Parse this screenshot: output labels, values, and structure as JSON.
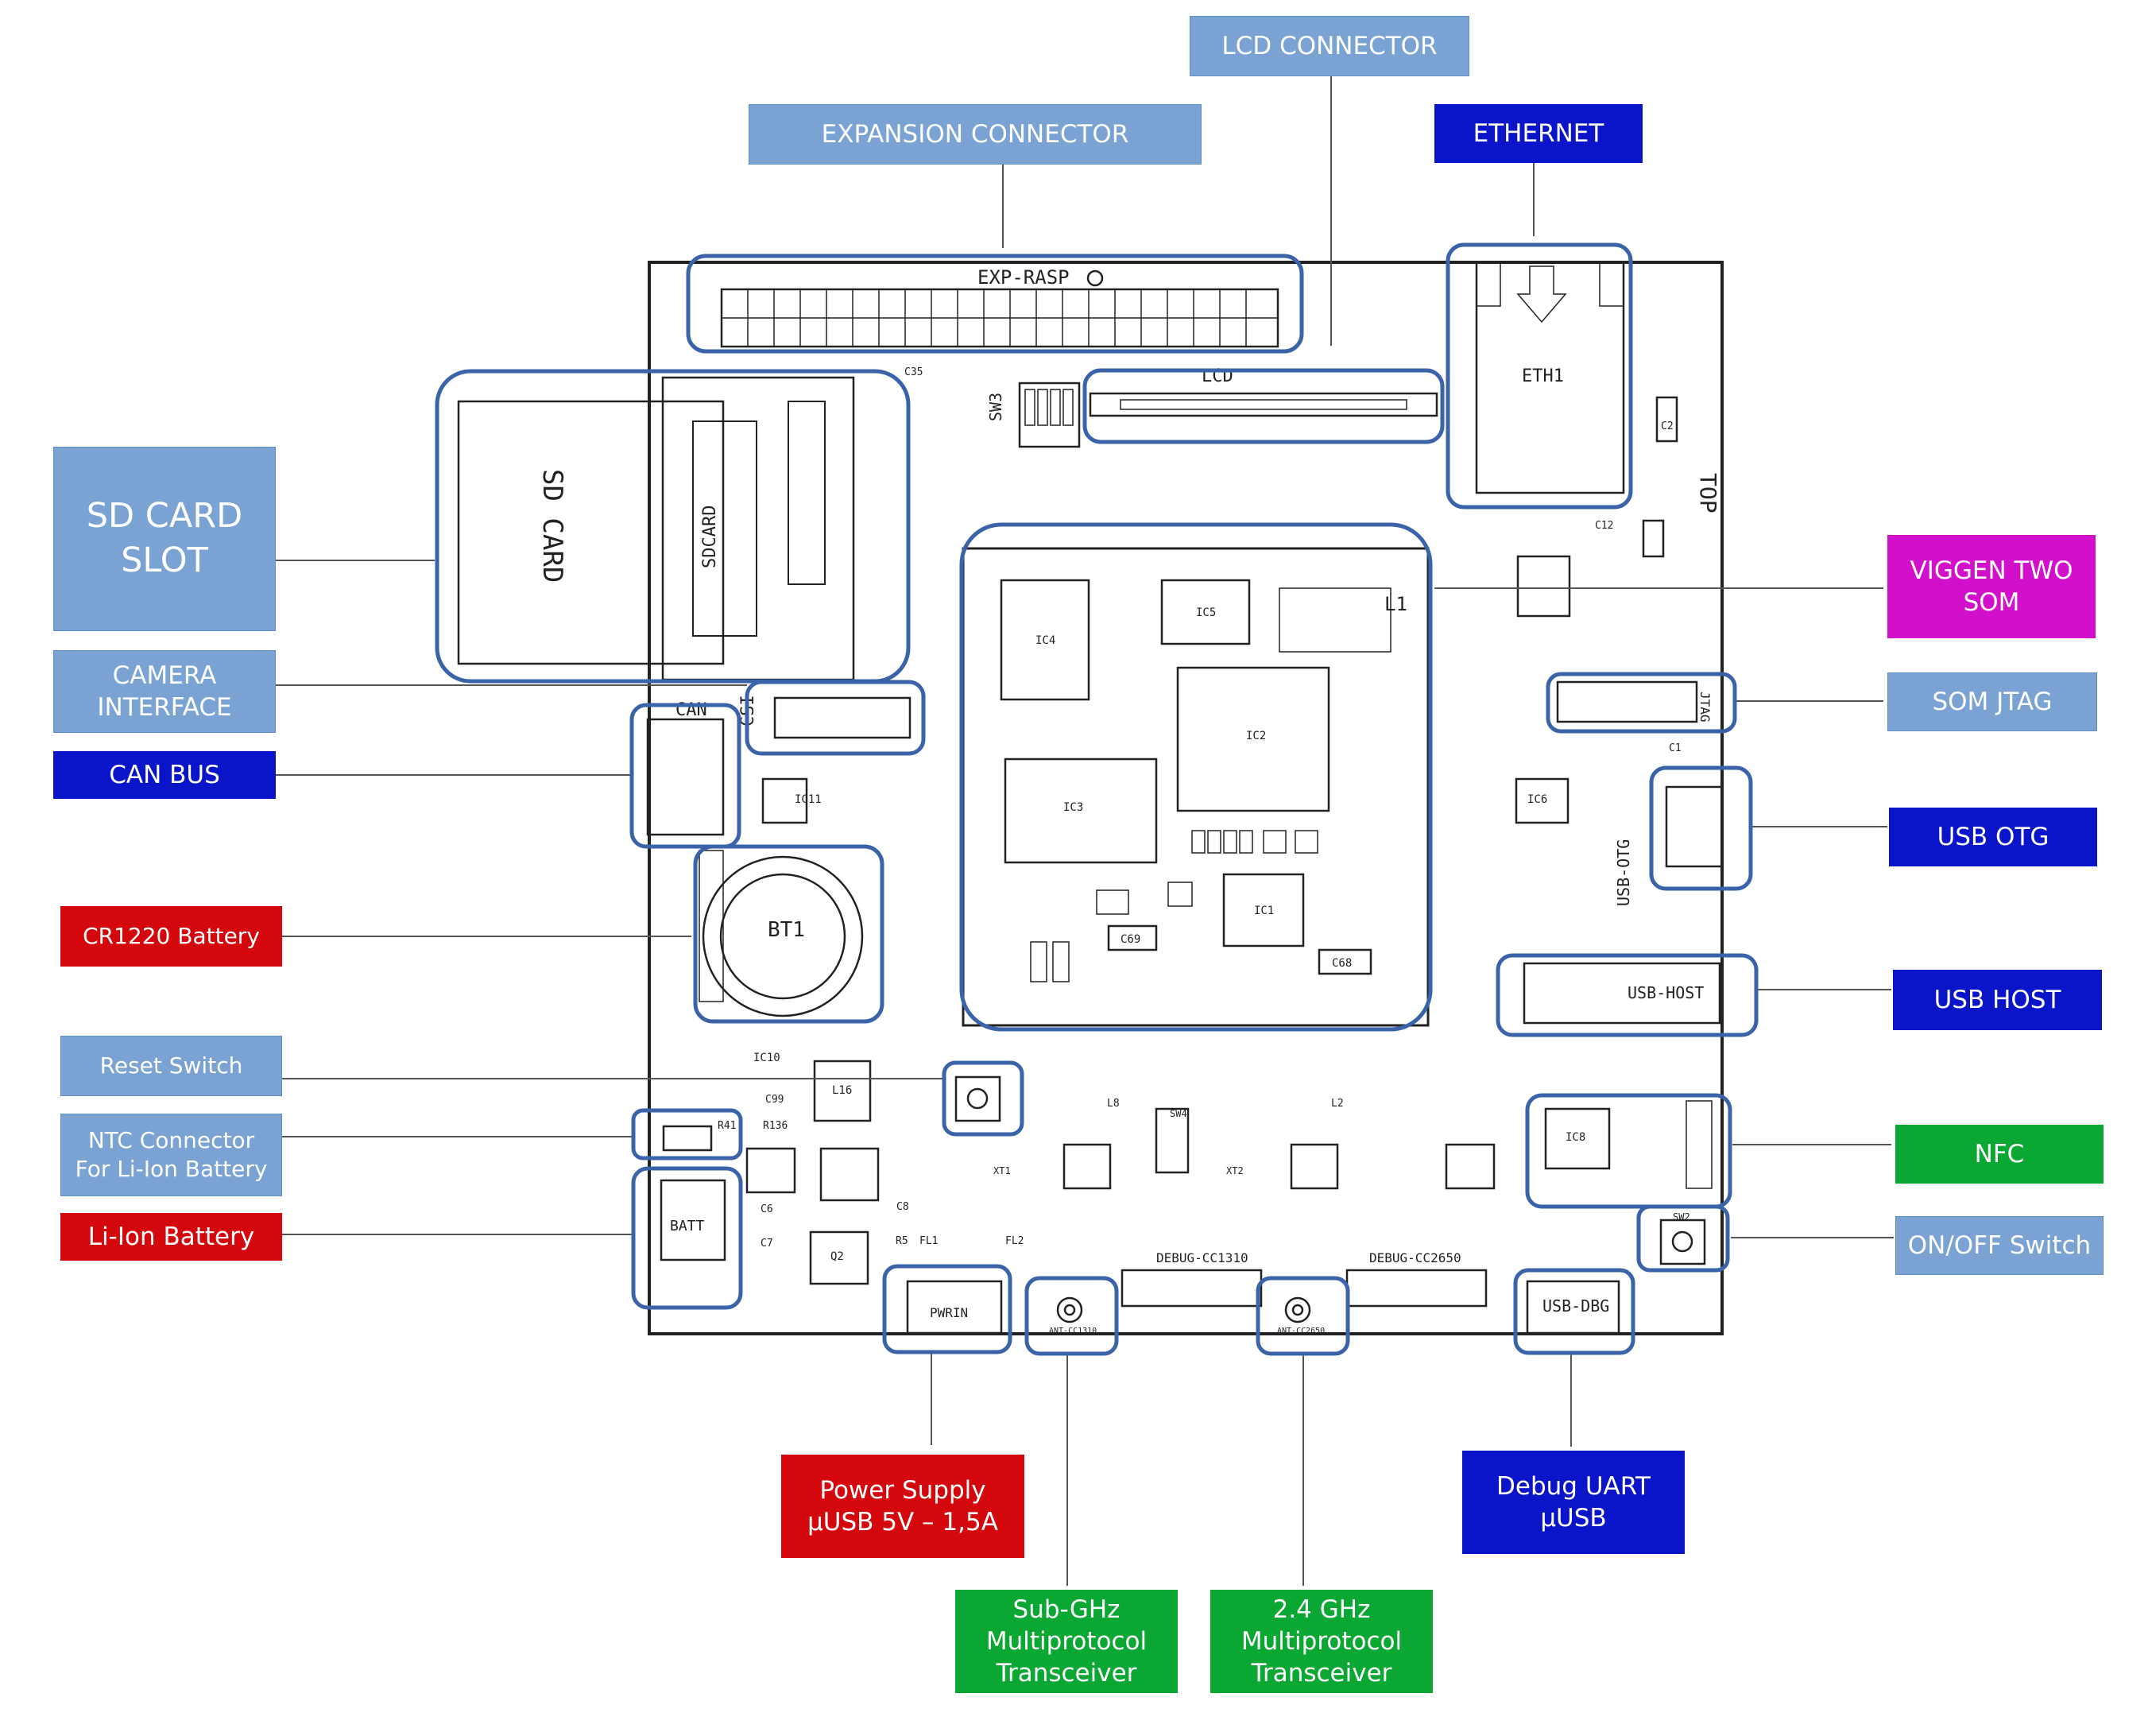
{
  "colors": {
    "light_blue": "#7aa3d4",
    "dark_blue": "#0a14c8",
    "red": "#d4080c",
    "green": "#0aa832",
    "magenta": "#d210cc",
    "highlight_outline": "#3a63a8",
    "pcb_line": "#222222"
  },
  "callouts": {
    "lcd_connector": "LCD CONNECTOR",
    "expansion_connector": "EXPANSION CONNECTOR",
    "ethernet": "ETHERNET",
    "sd_card_slot": "SD CARD\nSLOT",
    "camera_interface": "CAMERA\nINTERFACE",
    "can_bus": "CAN BUS",
    "cr1220_battery": "CR1220 Battery",
    "reset_switch": "Reset Switch",
    "ntc_connector": "NTC Connector\nFor Li-Ion Battery",
    "li_ion_battery": "Li-Ion Battery",
    "viggen_two_som": "VIGGEN TWO\nSOM",
    "som_jtag": "SOM JTAG",
    "usb_otg": "USB OTG",
    "usb_host": "USB HOST",
    "nfc": "NFC",
    "on_off_switch": "ON/OFF Switch",
    "power_supply": "Power Supply\nμUSB 5V – 1,5A",
    "sub_ghz": "Sub-GHz\nMultiprotocol\nTransceiver",
    "ghz_24": "2.4 GHz\nMultiprotocol\nTransceiver",
    "debug_uart": "Debug UART\nμUSB"
  },
  "silkscreen": {
    "exp_rasp": "EXP-RASP",
    "lcd": "LCD",
    "eth1": "ETH1",
    "top": "TOP",
    "sd_card": "SD CARD",
    "sdcard": "SDCARD",
    "can": "CAN",
    "csi": "CSI",
    "bt1": "BT1",
    "batt": "BATT",
    "jtag": "JTAG",
    "usb_otg": "USB-OTG",
    "usb_host": "USB-HOST",
    "usb_dbg": "USB-DBG",
    "pwrin": "PWRIN",
    "debug_cc1310": "DEBUG-CC1310",
    "debug_cc2650": "DEBUG-CC2650",
    "ant_cc1310": "ANT-CC1310",
    "ant_cc2650": "ANT-CC2650",
    "l1": "L1",
    "sw3": "SW3",
    "ic1": "IC1",
    "ic2": "IC2",
    "ic3": "IC3",
    "ic4": "IC4",
    "ic5": "IC5",
    "ic6": "IC6",
    "ic8": "IC8",
    "ic11": "IC11",
    "ic10": "IC10",
    "c68": "C68",
    "c69": "C69",
    "l16": "L16",
    "c99": "C99",
    "r136": "R136",
    "r41": "R41",
    "q2": "Q2",
    "c6": "C6",
    "c7": "C7",
    "c8": "C8",
    "l2": "L2",
    "l8": "L8",
    "sw4": "SW4",
    "sw2": "SW2",
    "c35": "C35",
    "c2": "C2",
    "c12": "C12",
    "c1": "C1",
    "fl1": "FL1",
    "fl2": "FL2",
    "r5": "R5",
    "xt1": "XT1",
    "xt2": "XT2"
  }
}
